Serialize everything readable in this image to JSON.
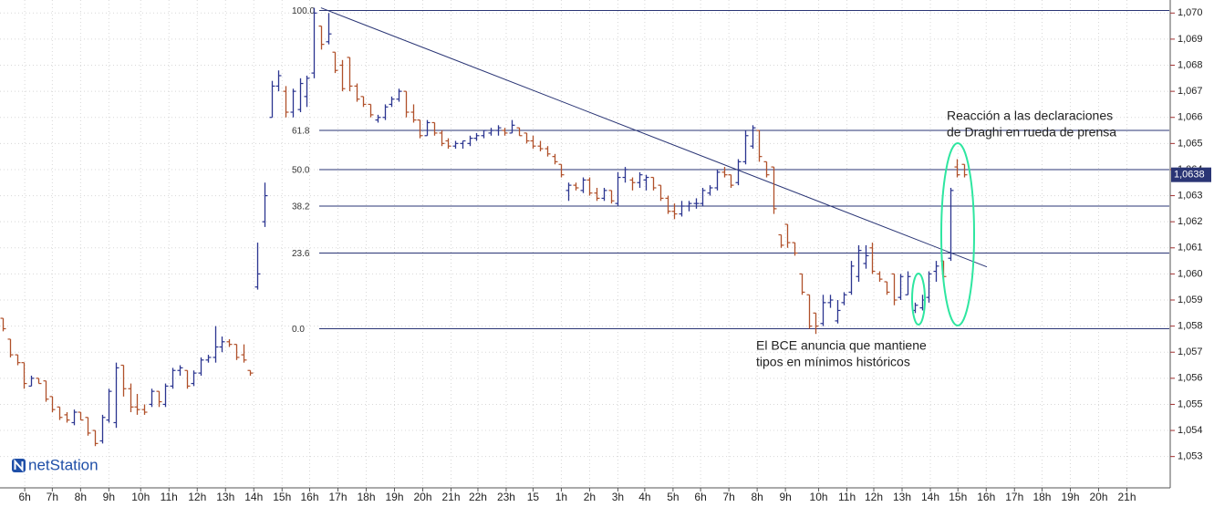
{
  "chart_data": {
    "type": "ohlc",
    "up_color": "#2b3590",
    "down_color": "#b0502a",
    "fib_color": "#2a3575",
    "xlim": [
      -0.4,
      165
    ],
    "ylim": [
      1.0518,
      1.0705
    ],
    "grid": true,
    "xticks": [
      {
        "value": 3.1,
        "label": "6h"
      },
      {
        "value": 7,
        "label": "7h"
      },
      {
        "value": 11,
        "label": "8h"
      },
      {
        "value": 15,
        "label": "9h"
      },
      {
        "value": 19.5,
        "label": "10h"
      },
      {
        "value": 23.5,
        "label": "11h"
      },
      {
        "value": 27.5,
        "label": "12h"
      },
      {
        "value": 31.5,
        "label": "13h"
      },
      {
        "value": 35.5,
        "label": "14h"
      },
      {
        "value": 39.5,
        "label": "15h"
      },
      {
        "value": 43.4,
        "label": "16h"
      },
      {
        "value": 47.4,
        "label": "17h"
      },
      {
        "value": 51.4,
        "label": "18h"
      },
      {
        "value": 55.4,
        "label": "19h"
      },
      {
        "value": 59.4,
        "label": "20h"
      },
      {
        "value": 63.4,
        "label": "21h"
      },
      {
        "value": 67.2,
        "label": "22h"
      },
      {
        "value": 71.2,
        "label": "23h"
      },
      {
        "value": 75,
        "label": "15"
      },
      {
        "value": 79,
        "label": "1h"
      },
      {
        "value": 83,
        "label": "2h"
      },
      {
        "value": 87,
        "label": "3h"
      },
      {
        "value": 90.8,
        "label": "4h"
      },
      {
        "value": 94.8,
        "label": "5h"
      },
      {
        "value": 98.7,
        "label": "6h"
      },
      {
        "value": 102.7,
        "label": "7h"
      },
      {
        "value": 106.7,
        "label": "8h"
      },
      {
        "value": 110.7,
        "label": "9h"
      },
      {
        "value": 115.4,
        "label": "10h"
      },
      {
        "value": 119.4,
        "label": "11h"
      },
      {
        "value": 123.2,
        "label": "12h"
      },
      {
        "value": 127.2,
        "label": "13h"
      },
      {
        "value": 131.2,
        "label": "14h"
      },
      {
        "value": 135.1,
        "label": "15h"
      },
      {
        "value": 139.1,
        "label": "16h"
      },
      {
        "value": 143.1,
        "label": "17h"
      },
      {
        "value": 147,
        "label": "18h"
      },
      {
        "value": 151,
        "label": "19h"
      },
      {
        "value": 155,
        "label": "20h"
      },
      {
        "value": 159,
        "label": "21h"
      }
    ],
    "yticks": [
      {
        "value": 1.053,
        "label": "1,053"
      },
      {
        "value": 1.054,
        "label": "1,054"
      },
      {
        "value": 1.055,
        "label": "1,055"
      },
      {
        "value": 1.056,
        "label": "1,056"
      },
      {
        "value": 1.057,
        "label": "1,057"
      },
      {
        "value": 1.058,
        "label": "1,058"
      },
      {
        "value": 1.059,
        "label": "1,059"
      },
      {
        "value": 1.06,
        "label": "1,060"
      },
      {
        "value": 1.061,
        "label": "1,061"
      },
      {
        "value": 1.062,
        "label": "1,062"
      },
      {
        "value": 1.063,
        "label": "1,063"
      },
      {
        "value": 1.064,
        "label": "1,064"
      },
      {
        "value": 1.065,
        "label": "1,065"
      },
      {
        "value": 1.066,
        "label": "1,066"
      },
      {
        "value": 1.067,
        "label": "1,067"
      },
      {
        "value": 1.068,
        "label": "1,068"
      },
      {
        "value": 1.069,
        "label": "1,069"
      },
      {
        "value": 1.07,
        "label": "1,070"
      }
    ],
    "last_price": {
      "value": 1.0638,
      "label": "1,0638"
    },
    "fib_levels": [
      {
        "label": "100.0",
        "price": 1.0701
      },
      {
        "label": "61.8",
        "price": 1.0655
      },
      {
        "label": "50.0",
        "price": 1.064
      },
      {
        "label": "38.2",
        "price": 1.0626
      },
      {
        "label": "23.6",
        "price": 1.0608
      },
      {
        "label": "0.0",
        "price": 1.0579
      }
    ],
    "trendline": {
      "x": [
        45,
        139.2
      ],
      "y": [
        1.0702,
        1.06027
      ]
    },
    "annotations": [
      {
        "lines": [
          "Reacción a las declaraciones",
          "de Draghi en rueda de prensa"
        ]
      },
      {
        "lines": [
          "El BCE anuncia que mantiene",
          "tipos en mínimos históricos"
        ]
      }
    ],
    "logo": "netStation",
    "x": [
      0,
      1,
      2,
      3,
      4,
      5,
      6,
      7,
      8,
      9,
      10,
      11,
      12,
      13,
      14,
      15,
      16,
      17,
      18,
      19,
      20,
      21,
      22,
      23,
      24,
      25,
      26,
      27,
      28,
      29,
      30,
      31,
      32,
      33,
      34,
      35,
      36,
      37,
      38,
      39,
      40,
      41,
      42,
      43,
      44,
      45,
      46,
      47,
      48,
      49,
      50,
      51,
      52,
      53,
      54,
      55,
      56,
      57,
      58,
      59,
      60,
      61,
      62,
      63,
      64,
      65,
      66,
      67,
      68,
      69,
      70,
      71,
      72,
      73,
      74,
      75,
      76,
      77,
      78,
      79,
      80,
      81,
      82,
      83,
      84,
      85,
      86,
      87,
      88,
      89,
      90,
      91,
      92,
      93,
      94,
      95,
      96,
      97,
      98,
      99,
      100,
      101,
      102,
      103,
      104,
      105,
      106,
      107,
      108,
      109,
      110,
      111,
      112,
      113,
      114,
      115,
      116,
      117,
      118,
      119,
      120,
      121,
      122,
      123,
      124,
      125,
      126,
      127,
      128,
      129,
      130,
      131,
      132,
      133,
      134,
      135,
      136
    ],
    "ohlc": [
      [
        1.0583,
        1.0583,
        1.0578,
        1.0579
      ],
      [
        1.0575,
        1.0575,
        1.0568,
        1.0569
      ],
      [
        1.0569,
        1.0569,
        1.0565,
        1.0566
      ],
      [
        1.0566,
        1.0566,
        1.0556,
        1.0558
      ],
      [
        1.0557,
        1.0561,
        1.0557,
        1.056
      ],
      [
        1.056,
        1.056,
        1.0558,
        1.0558
      ],
      [
        1.0559,
        1.0559,
        1.0551,
        1.0552
      ],
      [
        1.0553,
        1.0553,
        1.0547,
        1.0548
      ],
      [
        1.0549,
        1.0549,
        1.0544,
        1.0545
      ],
      [
        1.0546,
        1.0547,
        1.0543,
        1.0544
      ],
      [
        1.0543,
        1.0548,
        1.0542,
        1.0547
      ],
      [
        1.0547,
        1.0547,
        1.0544,
        1.0544
      ],
      [
        1.0545,
        1.0545,
        1.0538,
        1.0539
      ],
      [
        1.054,
        1.054,
        1.0534,
        1.0535
      ],
      [
        1.0536,
        1.0546,
        1.0535,
        1.0545
      ],
      [
        1.0544,
        1.0556,
        1.0543,
        1.0555
      ],
      [
        1.0543,
        1.0566,
        1.0541,
        1.0564
      ],
      [
        1.0565,
        1.0565,
        1.0553,
        1.0556
      ],
      [
        1.0556,
        1.0558,
        1.0547,
        1.0549
      ],
      [
        1.0549,
        1.0554,
        1.0546,
        1.0548
      ],
      [
        1.0548,
        1.055,
        1.0546,
        1.0547
      ],
      [
        1.055,
        1.0556,
        1.0549,
        1.0555
      ],
      [
        1.0555,
        1.0555,
        1.0549,
        1.0551
      ],
      [
        1.055,
        1.0558,
        1.0549,
        1.0557
      ],
      [
        1.0557,
        1.0564,
        1.0556,
        1.0563
      ],
      [
        1.0563,
        1.0565,
        1.0561,
        1.0564
      ],
      [
        1.0563,
        1.0563,
        1.0556,
        1.0557
      ],
      [
        1.0558,
        1.0563,
        1.0557,
        1.0562
      ],
      [
        1.0562,
        1.0568,
        1.0561,
        1.0567
      ],
      [
        1.0567,
        1.0569,
        1.0566,
        1.0568
      ],
      [
        1.0568,
        1.058,
        1.0566,
        1.0572
      ],
      [
        1.0572,
        1.0576,
        1.057,
        1.0574
      ],
      [
        1.0574,
        1.0575,
        1.0572,
        1.0573
      ],
      [
        1.0573,
        1.0573,
        1.0567,
        1.0568
      ],
      [
        1.0569,
        1.0573,
        1.0566,
        1.0567
      ],
      [
        1.0563,
        1.0563,
        1.0561,
        1.0562
      ],
      [
        1.0595,
        1.0612,
        1.0594,
        1.06
      ],
      [
        1.062,
        1.0635,
        1.0618,
        1.063
      ],
      [
        1.066,
        1.0674,
        1.066,
        1.0672
      ],
      [
        1.0672,
        1.0678,
        1.067,
        1.0676
      ],
      [
        1.067,
        1.0672,
        1.066,
        1.0662
      ],
      [
        1.0662,
        1.0671,
        1.066,
        1.067
      ],
      [
        1.0663,
        1.0675,
        1.0662,
        1.0673
      ],
      [
        1.0668,
        1.0676,
        1.0664,
        1.0675
      ],
      [
        1.0677,
        1.0702,
        1.0675,
        1.07
      ],
      [
        1.0695,
        1.0695,
        1.0686,
        1.0688
      ],
      [
        1.0689,
        1.07,
        1.0688,
        1.0692
      ],
      [
        1.0685,
        1.0685,
        1.0677,
        1.0678
      ],
      [
        1.068,
        1.0682,
        1.067,
        1.0671
      ],
      [
        1.0683,
        1.0683,
        1.067,
        1.0672
      ],
      [
        1.0672,
        1.0673,
        1.0666,
        1.0667
      ],
      [
        1.0668,
        1.0668,
        1.0664,
        1.0665
      ],
      [
        1.0665,
        1.0665,
        1.066,
        1.0661
      ],
      [
        1.0659,
        1.0661,
        1.0658,
        1.066
      ],
      [
        1.066,
        1.0665,
        1.0659,
        1.0664
      ],
      [
        1.0665,
        1.0668,
        1.0664,
        1.0667
      ],
      [
        1.0667,
        1.0671,
        1.0666,
        1.067
      ],
      [
        1.067,
        1.067,
        1.066,
        1.0662
      ],
      [
        1.0662,
        1.0665,
        1.0658,
        1.0659
      ],
      [
        1.0659,
        1.0659,
        1.0652,
        1.0653
      ],
      [
        1.0653,
        1.0659,
        1.0653,
        1.0658
      ],
      [
        1.0658,
        1.0658,
        1.0653,
        1.0654
      ],
      [
        1.0654,
        1.0655,
        1.0649,
        1.065
      ],
      [
        1.0651,
        1.0652,
        1.0648,
        1.0649
      ],
      [
        1.0649,
        1.0651,
        1.0648,
        1.065
      ],
      [
        1.065,
        1.0651,
        1.0648,
        1.0651
      ],
      [
        1.065,
        1.0653,
        1.0649,
        1.0652
      ],
      [
        1.0652,
        1.0654,
        1.0651,
        1.0653
      ],
      [
        1.0653,
        1.0655,
        1.0652,
        1.0655
      ],
      [
        1.0654,
        1.0656,
        1.0653,
        1.0655
      ],
      [
        1.0655,
        1.0657,
        1.0653,
        1.0656
      ],
      [
        1.0655,
        1.0656,
        1.0653,
        1.0654
      ],
      [
        1.0654,
        1.0659,
        1.0654,
        1.0657
      ],
      [
        1.0656,
        1.0656,
        1.0653,
        1.0653
      ],
      [
        1.0654,
        1.0654,
        1.065,
        1.0651
      ],
      [
        1.0651,
        1.0653,
        1.0648,
        1.0649
      ],
      [
        1.0649,
        1.0651,
        1.0647,
        1.0648
      ],
      [
        1.0648,
        1.0649,
        1.0645,
        1.0646
      ],
      [
        1.0645,
        1.0646,
        1.0642,
        1.0643
      ],
      [
        1.0642,
        1.0642,
        1.0637,
        1.0638
      ],
      [
        1.0632,
        1.0635,
        1.0628,
        1.0634
      ],
      [
        1.0634,
        1.0635,
        1.0632,
        1.0633
      ],
      [
        1.0632,
        1.0637,
        1.0631,
        1.0636
      ],
      [
        1.0636,
        1.0637,
        1.063,
        1.0631
      ],
      [
        1.0631,
        1.0633,
        1.0628,
        1.0629
      ],
      [
        1.0629,
        1.0633,
        1.0628,
        1.0632
      ],
      [
        1.0632,
        1.0632,
        1.0627,
        1.0628
      ],
      [
        1.0627,
        1.0639,
        1.0626,
        1.0637
      ],
      [
        1.0637,
        1.0641,
        1.0635,
        1.064
      ],
      [
        1.0636,
        1.0637,
        1.0632,
        1.0635
      ],
      [
        1.0635,
        1.0639,
        1.0633,
        1.0638
      ],
      [
        1.0636,
        1.0638,
        1.0632,
        1.0637
      ],
      [
        1.0637,
        1.0637,
        1.0632,
        1.0633
      ],
      [
        1.0634,
        1.0634,
        1.0628,
        1.0629
      ],
      [
        1.0629,
        1.063,
        1.0623,
        1.0624
      ],
      [
        1.0624,
        1.0627,
        1.0621,
        1.0623
      ],
      [
        1.0623,
        1.0628,
        1.0622,
        1.0626
      ],
      [
        1.0626,
        1.0628,
        1.0624,
        1.0627
      ],
      [
        1.0627,
        1.0629,
        1.0625,
        1.0627
      ],
      [
        1.0627,
        1.0633,
        1.0626,
        1.0632
      ],
      [
        1.0631,
        1.0634,
        1.063,
        1.0633
      ],
      [
        1.0633,
        1.064,
        1.0632,
        1.0639
      ],
      [
        1.0639,
        1.0641,
        1.0637,
        1.0638
      ],
      [
        1.0638,
        1.0638,
        1.0633,
        1.0634
      ],
      [
        1.0635,
        1.0644,
        1.0634,
        1.0643
      ],
      [
        1.0643,
        1.0655,
        1.0642,
        1.0653
      ],
      [
        1.0649,
        1.0657,
        1.0648,
        1.0656
      ],
      [
        1.0655,
        1.0655,
        1.0643,
        1.0645
      ],
      [
        1.0643,
        1.0643,
        1.0637,
        1.0638
      ],
      [
        1.0641,
        1.0641,
        1.0623,
        1.0625
      ],
      [
        1.0615,
        1.0615,
        1.061,
        1.0611
      ],
      [
        1.0619,
        1.0619,
        1.061,
        1.0612
      ],
      [
        1.0612,
        1.0612,
        1.0607,
        1.0608
      ],
      [
        1.06,
        1.06,
        1.0592,
        1.0593
      ],
      [
        1.0592,
        1.0592,
        1.0579,
        1.058
      ],
      [
        1.0585,
        1.0585,
        1.0577,
        1.058
      ],
      [
        1.0581,
        1.0592,
        1.058,
        1.0589
      ],
      [
        1.0589,
        1.0592,
        1.0587,
        1.059
      ],
      [
        1.0582,
        1.059,
        1.0581,
        1.0586
      ],
      [
        1.0589,
        1.0593,
        1.0588,
        1.0592
      ],
      [
        1.0593,
        1.0605,
        1.0592,
        1.0603
      ],
      [
        1.0599,
        1.0611,
        1.0597,
        1.0609
      ],
      [
        1.0604,
        1.0611,
        1.0602,
        1.0607
      ],
      [
        1.061,
        1.0612,
        1.06,
        1.0601
      ],
      [
        1.06,
        1.0601,
        1.0597,
        1.0598
      ],
      [
        1.0597,
        1.0597,
        1.0592,
        1.0593
      ],
      [
        1.06,
        1.06,
        1.0588,
        1.059
      ],
      [
        1.0591,
        1.06,
        1.059,
        1.0599
      ],
      [
        1.0592,
        1.0601,
        1.0592,
        1.0599
      ],
      [
        1.0586,
        1.0589,
        1.0585,
        1.0588
      ],
      [
        1.0587,
        1.0592,
        1.0586,
        1.059
      ],
      [
        1.0591,
        1.0601,
        1.0589,
        1.06
      ],
      [
        1.0601,
        1.0605,
        1.0597,
        1.0603
      ],
      [
        1.0605,
        1.0605,
        1.0597,
        1.0599
      ],
      [
        1.0606,
        1.0633,
        1.0605,
        1.0632
      ],
      [
        1.0641,
        1.0644,
        1.0637,
        1.0638
      ],
      [
        1.0642,
        1.0642,
        1.0637,
        1.0638
      ]
    ]
  }
}
